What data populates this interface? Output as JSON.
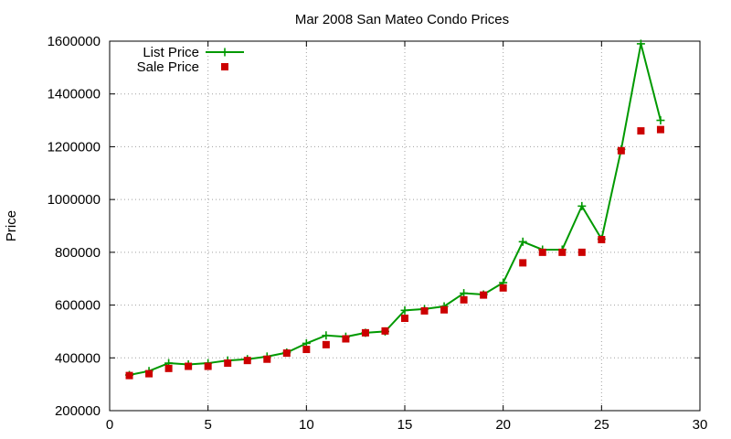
{
  "chart_data": {
    "type": "line",
    "title": "Mar 2008 San Mateo Condo Prices",
    "xlabel": "",
    "ylabel": "Price",
    "xlim": [
      0,
      30
    ],
    "ylim": [
      200000,
      1600000
    ],
    "xticks": [
      0,
      5,
      10,
      15,
      20,
      25,
      30
    ],
    "yticks": [
      200000,
      400000,
      600000,
      800000,
      1000000,
      1200000,
      1400000,
      1600000
    ],
    "grid": true,
    "legend_position": "top-left",
    "series": [
      {
        "name": "List Price",
        "style": "line-plus",
        "color": "#009900",
        "x": [
          1,
          2,
          3,
          4,
          5,
          6,
          7,
          8,
          9,
          10,
          11,
          12,
          13,
          14,
          15,
          16,
          17,
          18,
          19,
          20,
          21,
          22,
          23,
          24,
          25,
          26,
          27,
          28
        ],
        "values": [
          335000,
          350000,
          380000,
          375000,
          380000,
          390000,
          395000,
          405000,
          420000,
          455000,
          485000,
          480000,
          495000,
          500000,
          580000,
          585000,
          595000,
          645000,
          640000,
          685000,
          840000,
          810000,
          810000,
          975000,
          850000,
          1190000,
          1590000,
          1300000
        ]
      },
      {
        "name": "Sale Price",
        "style": "square",
        "color": "#cc0000",
        "x": [
          1,
          2,
          3,
          4,
          5,
          6,
          7,
          8,
          9,
          10,
          11,
          12,
          13,
          14,
          15,
          16,
          17,
          18,
          19,
          20,
          21,
          22,
          23,
          24,
          25,
          26,
          27,
          28
        ],
        "values": [
          333000,
          340000,
          360000,
          368000,
          368000,
          380000,
          390000,
          395000,
          418000,
          432000,
          450000,
          472000,
          495000,
          502000,
          550000,
          578000,
          582000,
          620000,
          638000,
          665000,
          760000,
          800000,
          800000,
          800000,
          848000,
          1185000,
          1260000,
          1265000
        ]
      }
    ]
  }
}
